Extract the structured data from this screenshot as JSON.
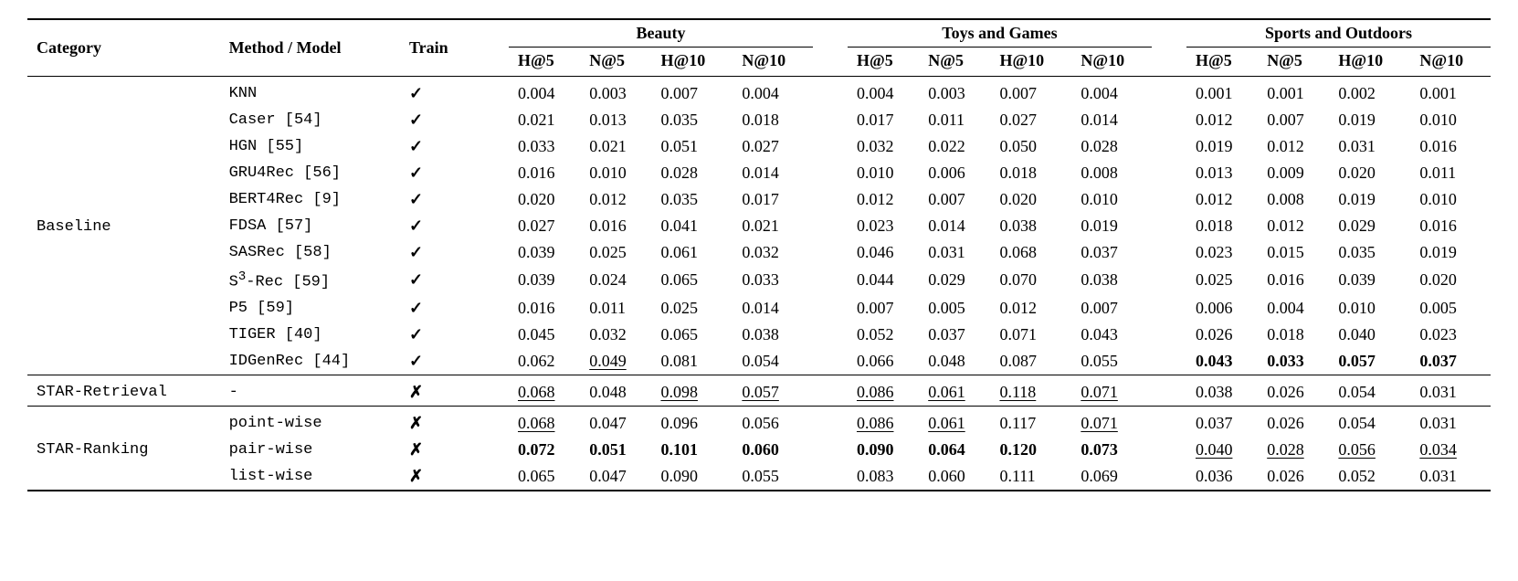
{
  "headers": {
    "category": "Category",
    "method": "Method / Model",
    "train": "Train",
    "groups": [
      "Beauty",
      "Toys and Games",
      "Sports and Outdoors"
    ],
    "subcols": [
      "H@5",
      "N@5",
      "H@10",
      "N@10"
    ]
  },
  "train_glyph_check": "✓",
  "train_glyph_cross": "✗",
  "sections": [
    {
      "category": "Baseline",
      "rows": [
        {
          "method": "KNN",
          "train": "check",
          "vals": [
            {
              "v": "0.004"
            },
            {
              "v": "0.003"
            },
            {
              "v": "0.007"
            },
            {
              "v": "0.004"
            },
            {
              "v": "0.004"
            },
            {
              "v": "0.003"
            },
            {
              "v": "0.007"
            },
            {
              "v": "0.004"
            },
            {
              "v": "0.001"
            },
            {
              "v": "0.001"
            },
            {
              "v": "0.002"
            },
            {
              "v": "0.001"
            }
          ]
        },
        {
          "method": "Caser [54]",
          "train": "check",
          "vals": [
            {
              "v": "0.021"
            },
            {
              "v": "0.013"
            },
            {
              "v": "0.035"
            },
            {
              "v": "0.018"
            },
            {
              "v": "0.017"
            },
            {
              "v": "0.011"
            },
            {
              "v": "0.027"
            },
            {
              "v": "0.014"
            },
            {
              "v": "0.012"
            },
            {
              "v": "0.007"
            },
            {
              "v": "0.019"
            },
            {
              "v": "0.010"
            }
          ]
        },
        {
          "method": "HGN [55]",
          "train": "check",
          "vals": [
            {
              "v": "0.033"
            },
            {
              "v": "0.021"
            },
            {
              "v": "0.051"
            },
            {
              "v": "0.027"
            },
            {
              "v": "0.032"
            },
            {
              "v": "0.022"
            },
            {
              "v": "0.050"
            },
            {
              "v": "0.028"
            },
            {
              "v": "0.019"
            },
            {
              "v": "0.012"
            },
            {
              "v": "0.031"
            },
            {
              "v": "0.016"
            }
          ]
        },
        {
          "method": "GRU4Rec [56]",
          "train": "check",
          "vals": [
            {
              "v": "0.016"
            },
            {
              "v": "0.010"
            },
            {
              "v": "0.028"
            },
            {
              "v": "0.014"
            },
            {
              "v": "0.010"
            },
            {
              "v": "0.006"
            },
            {
              "v": "0.018"
            },
            {
              "v": "0.008"
            },
            {
              "v": "0.013"
            },
            {
              "v": "0.009"
            },
            {
              "v": "0.020"
            },
            {
              "v": "0.011"
            }
          ]
        },
        {
          "method": "BERT4Rec [9]",
          "train": "check",
          "vals": [
            {
              "v": "0.020"
            },
            {
              "v": "0.012"
            },
            {
              "v": "0.035"
            },
            {
              "v": "0.017"
            },
            {
              "v": "0.012"
            },
            {
              "v": "0.007"
            },
            {
              "v": "0.020"
            },
            {
              "v": "0.010"
            },
            {
              "v": "0.012"
            },
            {
              "v": "0.008"
            },
            {
              "v": "0.019"
            },
            {
              "v": "0.010"
            }
          ]
        },
        {
          "method": "FDSA [57]",
          "train": "check",
          "vals": [
            {
              "v": "0.027"
            },
            {
              "v": "0.016"
            },
            {
              "v": "0.041"
            },
            {
              "v": "0.021"
            },
            {
              "v": "0.023"
            },
            {
              "v": "0.014"
            },
            {
              "v": "0.038"
            },
            {
              "v": "0.019"
            },
            {
              "v": "0.018"
            },
            {
              "v": "0.012"
            },
            {
              "v": "0.029"
            },
            {
              "v": "0.016"
            }
          ]
        },
        {
          "method": "SASRec [58]",
          "train": "check",
          "vals": [
            {
              "v": "0.039"
            },
            {
              "v": "0.025"
            },
            {
              "v": "0.061"
            },
            {
              "v": "0.032"
            },
            {
              "v": "0.046"
            },
            {
              "v": "0.031"
            },
            {
              "v": "0.068"
            },
            {
              "v": "0.037"
            },
            {
              "v": "0.023"
            },
            {
              "v": "0.015"
            },
            {
              "v": "0.035"
            },
            {
              "v": "0.019"
            }
          ]
        },
        {
          "method": "S³-Rec [59]",
          "method_html": "S<sup>3</sup>-Rec [59]",
          "train": "check",
          "vals": [
            {
              "v": "0.039"
            },
            {
              "v": "0.024"
            },
            {
              "v": "0.065"
            },
            {
              "v": "0.033"
            },
            {
              "v": "0.044"
            },
            {
              "v": "0.029"
            },
            {
              "v": "0.070"
            },
            {
              "v": "0.038"
            },
            {
              "v": "0.025"
            },
            {
              "v": "0.016"
            },
            {
              "v": "0.039"
            },
            {
              "v": "0.020"
            }
          ]
        },
        {
          "method": "P5 [59]",
          "train": "check",
          "vals": [
            {
              "v": "0.016"
            },
            {
              "v": "0.011"
            },
            {
              "v": "0.025"
            },
            {
              "v": "0.014"
            },
            {
              "v": "0.007"
            },
            {
              "v": "0.005"
            },
            {
              "v": "0.012"
            },
            {
              "v": "0.007"
            },
            {
              "v": "0.006"
            },
            {
              "v": "0.004"
            },
            {
              "v": "0.010"
            },
            {
              "v": "0.005"
            }
          ]
        },
        {
          "method": "TIGER [40]",
          "train": "check",
          "vals": [
            {
              "v": "0.045"
            },
            {
              "v": "0.032"
            },
            {
              "v": "0.065"
            },
            {
              "v": "0.038"
            },
            {
              "v": "0.052"
            },
            {
              "v": "0.037"
            },
            {
              "v": "0.071"
            },
            {
              "v": "0.043"
            },
            {
              "v": "0.026"
            },
            {
              "v": "0.018"
            },
            {
              "v": "0.040"
            },
            {
              "v": "0.023"
            }
          ]
        },
        {
          "method": "IDGenRec [44]",
          "train": "check",
          "vals": [
            {
              "v": "0.062"
            },
            {
              "v": "0.049",
              "s": "uline"
            },
            {
              "v": "0.081"
            },
            {
              "v": "0.054"
            },
            {
              "v": "0.066"
            },
            {
              "v": "0.048"
            },
            {
              "v": "0.087"
            },
            {
              "v": "0.055"
            },
            {
              "v": "0.043",
              "s": "bold"
            },
            {
              "v": "0.033",
              "s": "bold"
            },
            {
              "v": "0.057",
              "s": "bold"
            },
            {
              "v": "0.037",
              "s": "bold"
            }
          ]
        }
      ]
    },
    {
      "category": "STAR-Retrieval",
      "rows": [
        {
          "method": "-",
          "train": "cross",
          "vals": [
            {
              "v": "0.068",
              "s": "uline"
            },
            {
              "v": "0.048"
            },
            {
              "v": "0.098",
              "s": "uline"
            },
            {
              "v": "0.057",
              "s": "uline"
            },
            {
              "v": "0.086",
              "s": "uline"
            },
            {
              "v": "0.061",
              "s": "uline"
            },
            {
              "v": "0.118",
              "s": "uline"
            },
            {
              "v": "0.071",
              "s": "uline"
            },
            {
              "v": "0.038"
            },
            {
              "v": "0.026"
            },
            {
              "v": "0.054"
            },
            {
              "v": "0.031"
            }
          ]
        }
      ]
    },
    {
      "category": "STAR-Ranking",
      "rows": [
        {
          "method": "point-wise",
          "train": "cross",
          "vals": [
            {
              "v": "0.068",
              "s": "uline"
            },
            {
              "v": "0.047"
            },
            {
              "v": "0.096"
            },
            {
              "v": "0.056"
            },
            {
              "v": "0.086",
              "s": "uline"
            },
            {
              "v": "0.061",
              "s": "uline"
            },
            {
              "v": "0.117"
            },
            {
              "v": "0.071",
              "s": "uline"
            },
            {
              "v": "0.037"
            },
            {
              "v": "0.026"
            },
            {
              "v": "0.054"
            },
            {
              "v": "0.031"
            }
          ]
        },
        {
          "method": "pair-wise",
          "train": "cross",
          "vals": [
            {
              "v": "0.072",
              "s": "bold"
            },
            {
              "v": "0.051",
              "s": "bold"
            },
            {
              "v": "0.101",
              "s": "bold"
            },
            {
              "v": "0.060",
              "s": "bold"
            },
            {
              "v": "0.090",
              "s": "bold"
            },
            {
              "v": "0.064",
              "s": "bold"
            },
            {
              "v": "0.120",
              "s": "bold"
            },
            {
              "v": "0.073",
              "s": "bold"
            },
            {
              "v": "0.040",
              "s": "uline"
            },
            {
              "v": "0.028",
              "s": "uline"
            },
            {
              "v": "0.056",
              "s": "uline"
            },
            {
              "v": "0.034",
              "s": "uline"
            }
          ]
        },
        {
          "method": "list-wise",
          "train": "cross",
          "vals": [
            {
              "v": "0.065"
            },
            {
              "v": "0.047"
            },
            {
              "v": "0.090"
            },
            {
              "v": "0.055"
            },
            {
              "v": "0.083"
            },
            {
              "v": "0.060"
            },
            {
              "v": "0.111"
            },
            {
              "v": "0.069"
            },
            {
              "v": "0.036"
            },
            {
              "v": "0.026"
            },
            {
              "v": "0.052"
            },
            {
              "v": "0.031"
            }
          ]
        }
      ]
    }
  ]
}
